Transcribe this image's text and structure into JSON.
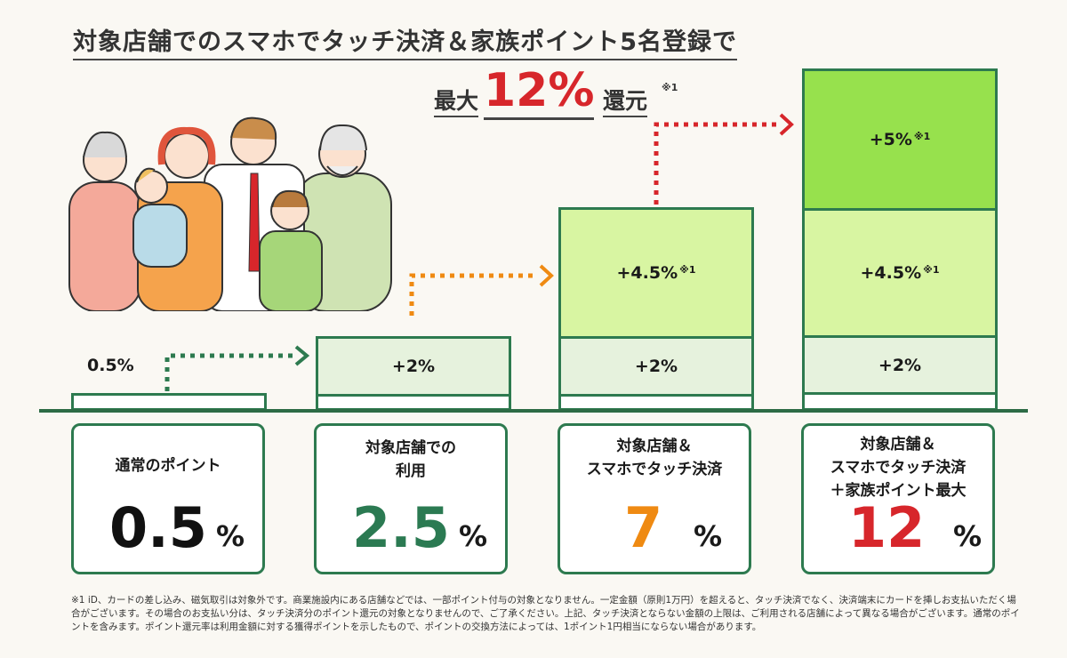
{
  "headline": {
    "line1": "対象店舗でのスマホでタッチ決済＆家族ポイント5名登録で",
    "prefix": "最大",
    "big": "12%",
    "suffix": "還元",
    "note_mark": "※1"
  },
  "bars": {
    "b1_label": "0.5%",
    "b2_label": "+2%",
    "b3_lower": "+2%",
    "b3_upper": "+4.5%",
    "b3_upper_note": "※1",
    "b4_lower": "+2%",
    "b4_mid": "+4.5%",
    "b4_mid_note": "※1",
    "b4_top": "+5%",
    "b4_top_note": "※1"
  },
  "cards": [
    {
      "label": "通常のポイント",
      "value": "0.5",
      "unit": "%",
      "color": "#111111"
    },
    {
      "label": "対象店舗での\n利用",
      "value": "2.5",
      "unit": "%",
      "color": "#2b7a52"
    },
    {
      "label": "対象店舗＆\nスマホでタッチ決済",
      "value": "7",
      "unit": "%",
      "color": "#ef8a12"
    },
    {
      "label": "対象店舗＆\nスマホでタッチ決済\n＋家族ポイント最大",
      "value": "12",
      "unit": "%",
      "color": "#d7262b"
    }
  ],
  "colors": {
    "accent_red": "#d7262b",
    "dark_green": "#2d7a4f",
    "orange": "#ef8a12",
    "light_green": "#d8f5a2",
    "bright_green": "#97e14d"
  },
  "footnote": "※1 iD、カードの差し込み、磁気取引は対象外です。商業施設内にある店舗などでは、一部ポイント付与の対象となりません。一定金額（原則1万円）を超えると、タッチ決済でなく、決済端末にカードを挿しお支払いただく場合がございます。その場合のお支払い分は、タッチ決済分のポイント還元の対象となりませんので、ご了承ください。上記、タッチ決済とならない金額の上限は、ご利用される店舗によって異なる場合がございます。通常のポイントを含みます。ポイント還元率は利用金額に対する獲得ポイントを示したもので、ポイントの交換方法によっては、1ポイント1円相当にならない場合があります。",
  "illustration": "family-illustration"
}
